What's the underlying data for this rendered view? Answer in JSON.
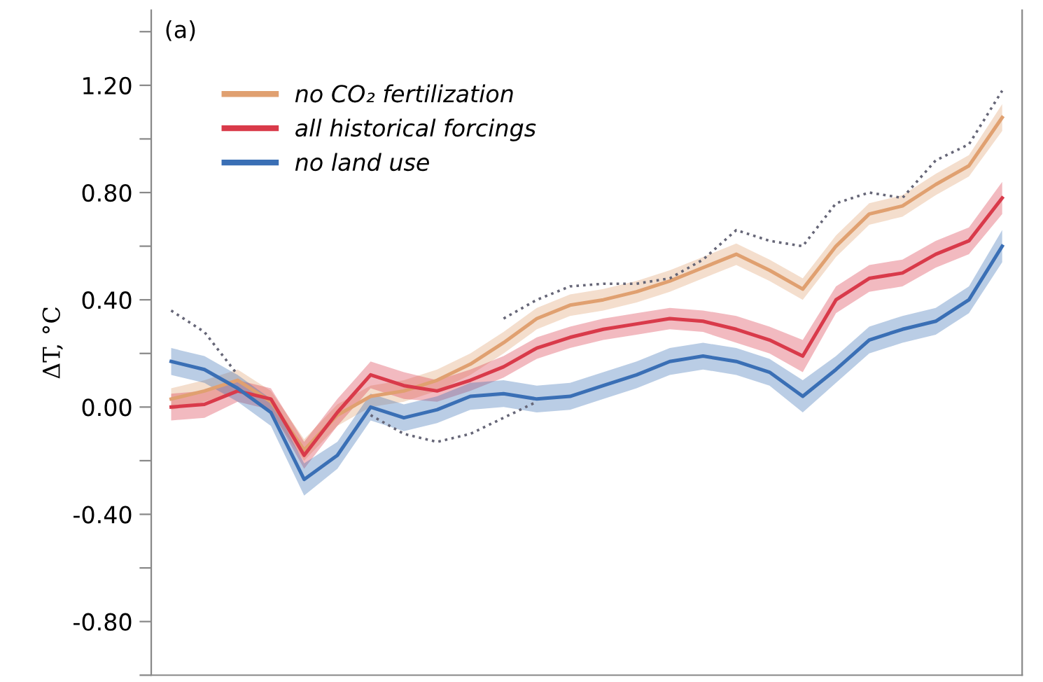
{
  "chart_data": {
    "type": "line",
    "annotations": [
      "(a)"
    ],
    "ylabel": "ΔT, °C",
    "categories": [
      null,
      null,
      null,
      null,
      null,
      null,
      null,
      null,
      null,
      null,
      null,
      null,
      null,
      null,
      null,
      null,
      null,
      null,
      null,
      null,
      null,
      null,
      null,
      null,
      null,
      null
    ],
    "ylim": [
      -1.0,
      1.48
    ],
    "yticks": [
      {
        "value": -1.0,
        "label": null
      },
      {
        "value": -0.8,
        "label": "-0.80"
      },
      {
        "value": -0.6,
        "label": null
      },
      {
        "value": -0.4,
        "label": "-0.40"
      },
      {
        "value": -0.2,
        "label": null
      },
      {
        "value": 0.0,
        "label": "0.00"
      },
      {
        "value": 0.2,
        "label": null
      },
      {
        "value": 0.4,
        "label": "0.40"
      },
      {
        "value": 0.6,
        "label": null
      },
      {
        "value": 0.8,
        "label": "0.80"
      },
      {
        "value": 1.0,
        "label": null
      },
      {
        "value": 1.2,
        "label": "1.20"
      },
      {
        "value": 1.4,
        "label": null
      }
    ],
    "grid": false,
    "legend": "top left",
    "marker": "none",
    "series": [
      {
        "name": "no CO₂ fertilization",
        "color": "#e0a070",
        "line_style": "solid",
        "values": [
          0.03,
          0.06,
          0.1,
          0.02,
          -0.16,
          -0.03,
          0.04,
          0.06,
          0.1,
          0.16,
          0.24,
          0.33,
          0.38,
          0.4,
          0.43,
          0.47,
          0.52,
          0.57,
          0.51,
          0.44,
          0.6,
          0.72,
          0.75,
          0.83,
          0.9,
          1.08
        ],
        "lower": [
          -0.01,
          0.02,
          0.06,
          -0.02,
          -0.2,
          -0.07,
          0.0,
          0.02,
          0.06,
          0.12,
          0.2,
          0.29,
          0.34,
          0.36,
          0.39,
          0.43,
          0.48,
          0.53,
          0.47,
          0.4,
          0.56,
          0.68,
          0.71,
          0.79,
          0.86,
          1.03
        ],
        "upper": [
          0.07,
          0.1,
          0.14,
          0.06,
          -0.12,
          0.01,
          0.08,
          0.1,
          0.14,
          0.2,
          0.28,
          0.37,
          0.42,
          0.44,
          0.47,
          0.51,
          0.56,
          0.61,
          0.55,
          0.48,
          0.64,
          0.76,
          0.79,
          0.87,
          0.94,
          1.13
        ]
      },
      {
        "name": "all historical forcings",
        "color": "#d93a4a",
        "line_style": "solid",
        "values": [
          0.0,
          0.01,
          0.06,
          0.03,
          -0.18,
          -0.02,
          0.12,
          0.08,
          0.06,
          0.1,
          0.15,
          0.22,
          0.26,
          0.29,
          0.31,
          0.33,
          0.32,
          0.29,
          0.25,
          0.19,
          0.4,
          0.48,
          0.5,
          0.57,
          0.62,
          0.78
        ],
        "lower": [
          -0.05,
          -0.04,
          0.02,
          -0.01,
          -0.23,
          -0.07,
          0.07,
          0.03,
          0.02,
          0.06,
          0.11,
          0.18,
          0.22,
          0.25,
          0.27,
          0.29,
          0.28,
          0.24,
          0.2,
          0.13,
          0.35,
          0.43,
          0.45,
          0.52,
          0.57,
          0.72
        ],
        "upper": [
          0.05,
          0.06,
          0.1,
          0.07,
          -0.13,
          0.03,
          0.17,
          0.13,
          0.1,
          0.14,
          0.19,
          0.26,
          0.3,
          0.33,
          0.35,
          0.37,
          0.36,
          0.34,
          0.3,
          0.25,
          0.45,
          0.53,
          0.55,
          0.62,
          0.67,
          0.84
        ]
      },
      {
        "name": "no land use",
        "color": "#3a6fb5",
        "line_style": "solid",
        "values": [
          0.17,
          0.14,
          0.07,
          -0.02,
          -0.27,
          -0.18,
          0.0,
          -0.04,
          -0.01,
          0.04,
          0.05,
          0.03,
          0.04,
          0.08,
          0.12,
          0.17,
          0.19,
          0.17,
          0.13,
          0.04,
          0.14,
          0.25,
          0.29,
          0.32,
          0.4,
          0.6
        ],
        "lower": [
          0.12,
          0.09,
          0.02,
          -0.07,
          -0.33,
          -0.23,
          -0.05,
          -0.09,
          -0.06,
          -0.01,
          0.0,
          -0.02,
          -0.01,
          0.03,
          0.07,
          0.12,
          0.14,
          0.12,
          0.08,
          -0.02,
          0.09,
          0.2,
          0.24,
          0.27,
          0.35,
          0.54
        ],
        "upper": [
          0.22,
          0.19,
          0.12,
          0.03,
          -0.21,
          -0.13,
          0.05,
          0.01,
          0.04,
          0.09,
          0.1,
          0.08,
          0.09,
          0.13,
          0.17,
          0.22,
          0.24,
          0.22,
          0.18,
          0.1,
          0.19,
          0.3,
          0.34,
          0.37,
          0.45,
          0.66
        ]
      },
      {
        "color": "#666677",
        "line_style": "dotted",
        "values": [
          0.36,
          0.28,
          0.12,
          null,
          null,
          null,
          null,
          null,
          null,
          null,
          0.33,
          0.4,
          0.45,
          0.46,
          0.46,
          0.48,
          0.55,
          0.66,
          0.62,
          0.6,
          0.76,
          0.8,
          0.78,
          0.92,
          0.98,
          1.18
        ]
      },
      {
        "color": "#666677",
        "line_style": "dotted",
        "values": [
          null,
          null,
          null,
          null,
          null,
          null,
          -0.03,
          -0.1,
          -0.13,
          -0.1,
          -0.04,
          0.02,
          null,
          null,
          null,
          null,
          null,
          null,
          null,
          null,
          null,
          null,
          null,
          null,
          null,
          null
        ]
      }
    ]
  }
}
